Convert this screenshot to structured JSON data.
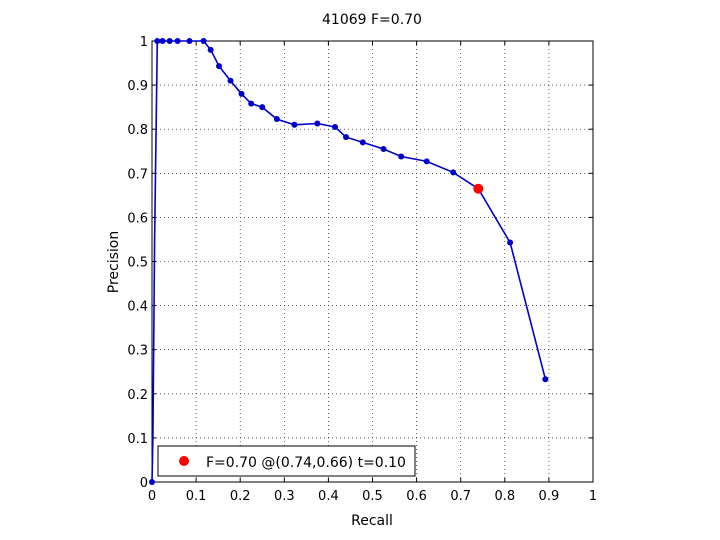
{
  "chart_data": {
    "type": "line",
    "title": "41069 F=0.70",
    "xlabel": "Recall",
    "ylabel": "Precision",
    "xlim": [
      0,
      1
    ],
    "ylim": [
      0,
      1
    ],
    "xticks": [
      "0",
      "0.1",
      "0.2",
      "0.3",
      "0.4",
      "0.5",
      "0.6",
      "0.7",
      "0.8",
      "0.9",
      "1"
    ],
    "yticks": [
      "0",
      "0.1",
      "0.2",
      "0.3",
      "0.4",
      "0.5",
      "0.6",
      "0.7",
      "0.8",
      "0.9",
      "1"
    ],
    "grid": true,
    "grid_style": "dotted",
    "line_color": "#0000cc",
    "marker_color": "#0000cc",
    "highlight_color": "#ff0000",
    "series": [
      {
        "x": [
          0.0,
          0.002,
          0.006,
          0.012,
          0.024,
          0.04,
          0.058,
          0.085,
          0.117,
          0.133,
          0.152,
          0.178,
          0.203,
          0.225,
          0.25,
          0.283,
          0.323,
          0.375,
          0.415,
          0.44,
          0.478,
          0.525,
          0.565,
          0.623,
          0.683,
          0.74,
          0.812,
          0.892
        ],
        "y": [
          0.0,
          0.1,
          0.55,
          1.0,
          1.0,
          1.0,
          1.0,
          1.0,
          1.0,
          0.98,
          0.943,
          0.91,
          0.88,
          0.858,
          0.85,
          0.823,
          0.81,
          0.813,
          0.805,
          0.782,
          0.77,
          0.755,
          0.738,
          0.727,
          0.702,
          0.665,
          0.543,
          0.233
        ],
        "markers": [
          0,
          3,
          4,
          5,
          6,
          7,
          8,
          9,
          10,
          11,
          12,
          13,
          14,
          15,
          16,
          17,
          18,
          19,
          20,
          21,
          22,
          23,
          24,
          26,
          27
        ]
      }
    ],
    "highlight_point": {
      "x": 0.74,
      "y": 0.665
    },
    "legend": {
      "placement": "bottom-left",
      "text": "F=0.70 @(0.74,0.66) t=0.10"
    }
  }
}
